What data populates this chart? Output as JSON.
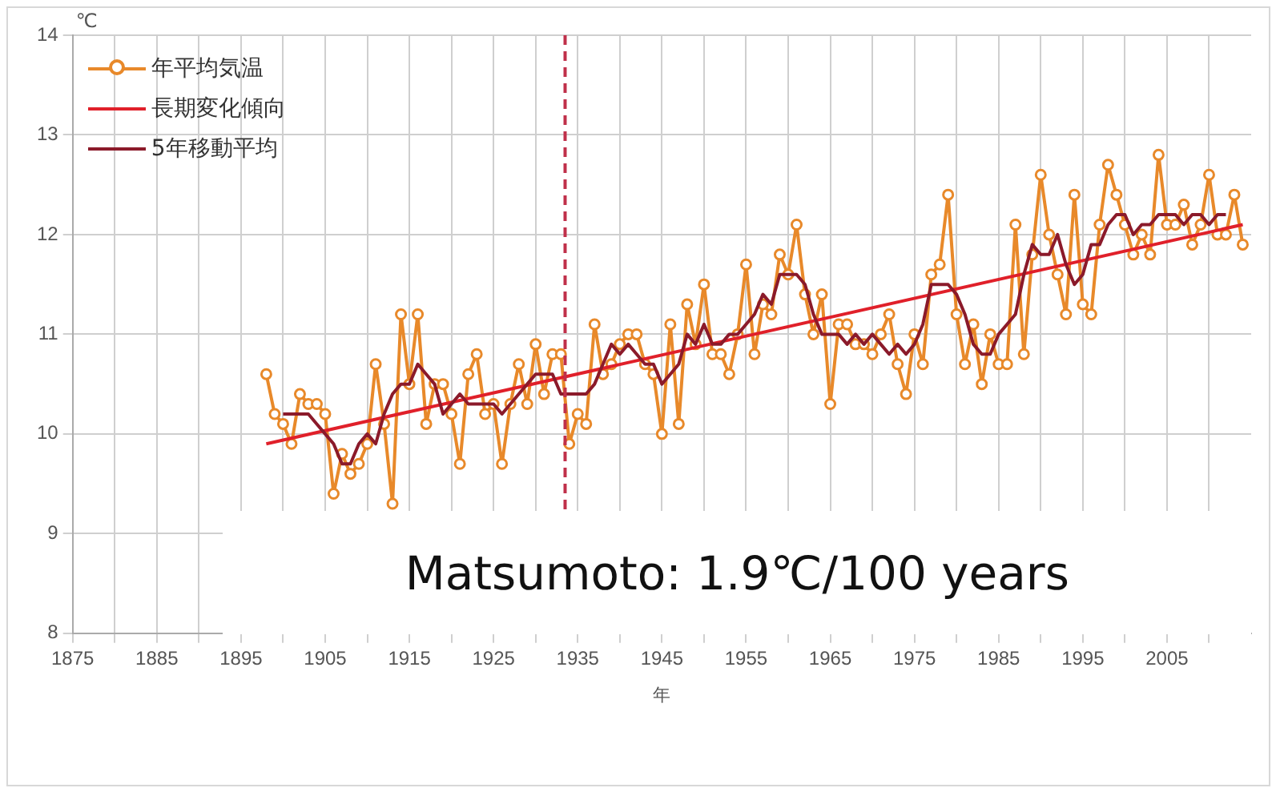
{
  "chart_data": {
    "type": "line",
    "xlabel": "年",
    "ylabel": "℃",
    "xlim": [
      1875,
      2015
    ],
    "ylim": [
      8,
      14
    ],
    "xticks": [
      1875,
      {
        "value": 1880,
        "label": null
      },
      1885,
      {
        "value": 1890,
        "label": null
      },
      1895,
      {
        "value": 1900,
        "label": null
      },
      1905,
      {
        "value": 1910,
        "label": null
      },
      1915,
      {
        "value": 1920,
        "label": null
      },
      1925,
      {
        "value": 1930,
        "label": null
      },
      1935,
      {
        "value": 1940,
        "label": null
      },
      1945,
      {
        "value": 1950,
        "label": null
      },
      1955,
      {
        "value": 1960,
        "label": null
      },
      1965,
      {
        "value": 1970,
        "label": null
      },
      1975,
      {
        "value": 1980,
        "label": null
      },
      1985,
      {
        "value": 1990,
        "label": null
      },
      1995,
      {
        "value": 2000,
        "label": null
      },
      2005,
      {
        "value": 2010,
        "label": null
      }
    ],
    "yticks": [
      8,
      9,
      10,
      11,
      12,
      13,
      14
    ],
    "grid": true,
    "legend": "top left",
    "annotations": [
      "Matsumoto: 1.9℃/100 years"
    ],
    "ref_lines": [
      {
        "axis": "x",
        "value": 1933.5,
        "color": "#c0304a",
        "line_style": "dashed"
      }
    ],
    "series": [
      {
        "name": "年平均気温",
        "color": "#e8892a",
        "marker": "circle",
        "line_style": "solid",
        "x": [
          1898,
          1899,
          1900,
          1901,
          1902,
          1903,
          1904,
          1905,
          1906,
          1907,
          1908,
          1909,
          1910,
          1911,
          1912,
          1913,
          1914,
          1915,
          1916,
          1917,
          1918,
          1919,
          1920,
          1921,
          1922,
          1923,
          1924,
          1925,
          1926,
          1927,
          1928,
          1929,
          1930,
          1931,
          1932,
          1933,
          1934,
          1935,
          1936,
          1937,
          1938,
          1939,
          1940,
          1941,
          1942,
          1943,
          1944,
          1945,
          1946,
          1947,
          1948,
          1949,
          1950,
          1951,
          1952,
          1953,
          1954,
          1955,
          1956,
          1957,
          1958,
          1959,
          1960,
          1961,
          1962,
          1963,
          1964,
          1965,
          1966,
          1967,
          1968,
          1969,
          1970,
          1971,
          1972,
          1973,
          1974,
          1975,
          1976,
          1977,
          1978,
          1979,
          1980,
          1981,
          1982,
          1983,
          1984,
          1985,
          1986,
          1987,
          1988,
          1989,
          1990,
          1991,
          1992,
          1993,
          1994,
          1995,
          1996,
          1997,
          1998,
          1999,
          2000,
          2001,
          2002,
          2003,
          2004,
          2005,
          2006,
          2007,
          2008,
          2009,
          2010,
          2011,
          2012,
          2013,
          2014
        ],
        "values": [
          10.6,
          10.2,
          10.1,
          9.9,
          10.4,
          10.3,
          10.3,
          10.2,
          9.4,
          9.8,
          9.6,
          9.7,
          9.9,
          10.7,
          10.1,
          9.3,
          11.2,
          10.5,
          11.2,
          10.1,
          10.5,
          10.5,
          10.2,
          9.7,
          10.6,
          10.8,
          10.2,
          10.3,
          9.7,
          10.3,
          10.7,
          10.3,
          10.9,
          10.4,
          10.8,
          10.8,
          9.9,
          10.2,
          10.1,
          11.1,
          10.6,
          10.7,
          10.9,
          11.0,
          11.0,
          10.7,
          10.6,
          10.0,
          11.1,
          10.1,
          11.3,
          10.9,
          11.5,
          10.8,
          10.8,
          10.6,
          11.0,
          11.7,
          10.8,
          11.3,
          11.2,
          11.8,
          11.6,
          12.1,
          11.4,
          11.0,
          11.4,
          10.3,
          11.1,
          11.1,
          10.9,
          10.9,
          10.8,
          11.0,
          11.2,
          10.7,
          10.4,
          11.0,
          10.7,
          11.6,
          11.7,
          12.4,
          11.2,
          10.7,
          11.1,
          10.5,
          11.0,
          10.7,
          10.7,
          12.1,
          10.8,
          11.8,
          12.6,
          12.0,
          11.6,
          11.2,
          12.4,
          11.3,
          11.2,
          12.1,
          12.7,
          12.4,
          12.1,
          11.8,
          12.0,
          11.8,
          12.8,
          12.1,
          12.1,
          12.3,
          11.9,
          12.1,
          12.6,
          12.0,
          12.0,
          12.4,
          11.9
        ]
      },
      {
        "name": "長期変化傾向",
        "color": "#e0202a",
        "marker": "none",
        "line_style": "solid",
        "x": [
          1898,
          2014
        ],
        "values": [
          9.9,
          12.1
        ]
      },
      {
        "name": "5年移動平均",
        "color": "#8b1a2a",
        "marker": "none",
        "line_style": "solid",
        "x": [
          1900,
          1901,
          1902,
          1903,
          1904,
          1905,
          1906,
          1907,
          1908,
          1909,
          1910,
          1911,
          1912,
          1913,
          1914,
          1915,
          1916,
          1917,
          1918,
          1919,
          1920,
          1921,
          1922,
          1923,
          1924,
          1925,
          1926,
          1927,
          1928,
          1929,
          1930,
          1931,
          1932,
          1933,
          1934,
          1935,
          1936,
          1937,
          1938,
          1939,
          1940,
          1941,
          1942,
          1943,
          1944,
          1945,
          1946,
          1947,
          1948,
          1949,
          1950,
          1951,
          1952,
          1953,
          1954,
          1955,
          1956,
          1957,
          1958,
          1959,
          1960,
          1961,
          1962,
          1963,
          1964,
          1965,
          1966,
          1967,
          1968,
          1969,
          1970,
          1971,
          1972,
          1973,
          1974,
          1975,
          1976,
          1977,
          1978,
          1979,
          1980,
          1981,
          1982,
          1983,
          1984,
          1985,
          1986,
          1987,
          1988,
          1989,
          1990,
          1991,
          1992,
          1993,
          1994,
          1995,
          1996,
          1997,
          1998,
          1999,
          2000,
          2001,
          2002,
          2003,
          2004,
          2005,
          2006,
          2007,
          2008,
          2009,
          2010,
          2011,
          2012
        ],
        "values": [
          10.2,
          10.2,
          10.2,
          10.2,
          10.1,
          10.0,
          9.9,
          9.7,
          9.7,
          9.9,
          10.0,
          9.9,
          10.2,
          10.4,
          10.5,
          10.5,
          10.7,
          10.6,
          10.5,
          10.2,
          10.3,
          10.4,
          10.3,
          10.3,
          10.3,
          10.3,
          10.2,
          10.3,
          10.4,
          10.5,
          10.6,
          10.6,
          10.6,
          10.4,
          10.4,
          10.4,
          10.4,
          10.5,
          10.7,
          10.9,
          10.8,
          10.9,
          10.8,
          10.7,
          10.7,
          10.5,
          10.6,
          10.7,
          11.0,
          10.9,
          11.1,
          10.9,
          10.9,
          11.0,
          11.0,
          11.1,
          11.2,
          11.4,
          11.3,
          11.6,
          11.6,
          11.6,
          11.5,
          11.2,
          11.0,
          11.0,
          11.0,
          10.9,
          11.0,
          10.9,
          11.0,
          10.9,
          10.8,
          10.9,
          10.8,
          10.9,
          11.1,
          11.5,
          11.5,
          11.5,
          11.4,
          11.2,
          10.9,
          10.8,
          10.8,
          11.0,
          11.1,
          11.2,
          11.6,
          11.9,
          11.8,
          11.8,
          12.0,
          11.7,
          11.5,
          11.6,
          11.9,
          11.9,
          12.1,
          12.2,
          12.2,
          12.0,
          12.1,
          12.1,
          12.2,
          12.2,
          12.2,
          12.1,
          12.2,
          12.2,
          12.1,
          12.2,
          12.2
        ]
      }
    ]
  }
}
